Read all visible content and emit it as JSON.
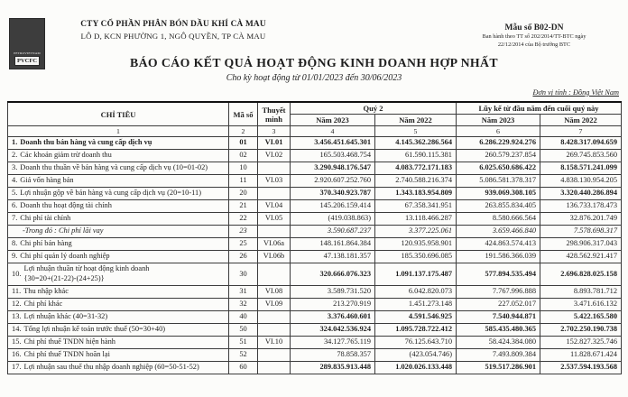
{
  "header": {
    "company_name": "CTY CỔ PHẦN PHÂN BÓN DẦU KHÍ CÀ MAU",
    "company_address": "LÔ D, KCN PHƯỜNG 1, NGÔ QUYỀN, TP CÀ MAU",
    "form_number": "Mẫu số B02-DN",
    "form_note_line1": "Ban hành theo TT số 202/2014/TT-BTC ngày",
    "form_note_line2": "22/12/2014 của Bộ trưởng BTC",
    "logo_brand_top": "PETROVIETNAM",
    "logo_brand_bottom": "PVCFC"
  },
  "title_block": {
    "title": "BÁO CÁO KẾT QUẢ HOẠT ĐỘNG KINH DOANH HỢP NHẤT",
    "subtitle": "Cho kỳ hoạt động từ 01/01/2023 đến 30/06/2023",
    "unit_note": "Đơn vị tính : Đồng Việt Nam"
  },
  "table": {
    "header": {
      "chi_tieu": "CHỈ TIÊU",
      "ma_so": "Mã số",
      "thuyet_minh": "Thuyết minh",
      "quy2": "Quý 2",
      "luy_ke": "Lũy kế từ đầu năm đến cuối quý này",
      "q2_y2023": "Năm 2023",
      "q2_y2022": "Năm 2022",
      "lk_y2023": "Năm 2023",
      "lk_y2022": "Năm 2022"
    },
    "col_index": [
      "1",
      "2",
      "3",
      "4",
      "5",
      "6",
      "7"
    ],
    "rows": [
      {
        "num": "1.",
        "label": "Doanh thu bán hàng và cung cấp dịch vụ",
        "ma_so": "01",
        "thuyet_minh": "VI.01",
        "q2_2023": "3.456.451.645.301",
        "q2_2022": "4.145.362.286.564",
        "lk_2023": "6.286.229.924.276",
        "lk_2022": "8.428.317.094.659",
        "bold": true,
        "bold_label": true,
        "italic": false
      },
      {
        "num": "2.",
        "label": "Các khoản giảm trừ doanh thu",
        "ma_so": "02",
        "thuyet_minh": "VI.02",
        "q2_2023": "165.503.468.754",
        "q2_2022": "61.590.115.381",
        "lk_2023": "260.579.237.854",
        "lk_2022": "269.745.853.560",
        "bold": false,
        "bold_label": false,
        "italic": false
      },
      {
        "num": "3.",
        "label": "Doanh thu thuần về bán hàng và cung cấp dịch vụ (10=01-02)",
        "ma_so": "10",
        "thuyet_minh": "",
        "q2_2023": "3.290.948.176.547",
        "q2_2022": "4.083.772.171.183",
        "lk_2023": "6.025.650.686.422",
        "lk_2022": "8.158.571.241.099",
        "bold": true,
        "bold_label": false,
        "italic": false
      },
      {
        "num": "4.",
        "label": "Giá vốn hàng bán",
        "ma_so": "11",
        "thuyet_minh": "VI.03",
        "q2_2023": "2.920.607.252.760",
        "q2_2022": "2.740.588.216.374",
        "lk_2023": "5.086.581.378.317",
        "lk_2022": "4.838.130.954.205",
        "bold": false,
        "bold_label": false,
        "italic": false
      },
      {
        "num": "5.",
        "label": "Lợi nhuận gộp về bán hàng và cung cấp dịch vụ (20=10-11)",
        "ma_so": "20",
        "thuyet_minh": "",
        "q2_2023": "370.340.923.787",
        "q2_2022": "1.343.183.954.809",
        "lk_2023": "939.069.308.105",
        "lk_2022": "3.320.440.286.894",
        "bold": true,
        "bold_label": false,
        "italic": false
      },
      {
        "num": "6.",
        "label": "Doanh thu hoạt động tài chính",
        "ma_so": "21",
        "thuyet_minh": "VI.04",
        "q2_2023": "145.206.159.414",
        "q2_2022": "67.358.341.951",
        "lk_2023": "263.855.834.405",
        "lk_2022": "136.733.178.473",
        "bold": false,
        "bold_label": false,
        "italic": false
      },
      {
        "num": "7.",
        "label": "Chi phí tài chính",
        "ma_so": "22",
        "thuyet_minh": "VI.05",
        "q2_2023": "(419.038.863)",
        "q2_2022": "13.118.466.287",
        "lk_2023": "8.580.666.564",
        "lk_2022": "32.876.201.749",
        "bold": false,
        "bold_label": false,
        "italic": false
      },
      {
        "num": "",
        "label": "-Trong đó : Chi phí lãi vay",
        "ma_so": "23",
        "thuyet_minh": "",
        "q2_2023": "3.590.687.237",
        "q2_2022": "3.377.225.061",
        "lk_2023": "3.659.466.840",
        "lk_2022": "7.578.698.317",
        "bold": false,
        "bold_label": false,
        "italic": true
      },
      {
        "num": "8.",
        "label": "Chi phí bán hàng",
        "ma_so": "25",
        "thuyet_minh": "VI.06a",
        "q2_2023": "148.161.864.384",
        "q2_2022": "120.935.958.901",
        "lk_2023": "424.863.574.413",
        "lk_2022": "298.906.317.043",
        "bold": false,
        "bold_label": false,
        "italic": false
      },
      {
        "num": "9.",
        "label": "Chi phí quản lý doanh nghiệp",
        "ma_so": "26",
        "thuyet_minh": "VI.06b",
        "q2_2023": "47.138.181.357",
        "q2_2022": "185.350.696.085",
        "lk_2023": "191.586.366.039",
        "lk_2022": "428.562.921.417",
        "bold": false,
        "bold_label": false,
        "italic": false
      },
      {
        "num": "10.",
        "label": "Lợi nhuận thuần từ hoạt động kinh doanh\n{30=20+(21-22)-(24+25)}",
        "ma_so": "30",
        "thuyet_minh": "",
        "q2_2023": "320.666.076.323",
        "q2_2022": "1.091.137.175.487",
        "lk_2023": "577.894.535.494",
        "lk_2022": "2.696.828.025.158",
        "bold": true,
        "bold_label": false,
        "italic": false
      },
      {
        "num": "11.",
        "label": "Thu nhập khác",
        "ma_so": "31",
        "thuyet_minh": "VI.08",
        "q2_2023": "3.589.731.520",
        "q2_2022": "6.042.820.073",
        "lk_2023": "7.767.996.888",
        "lk_2022": "8.893.781.712",
        "bold": false,
        "bold_label": false,
        "italic": false
      },
      {
        "num": "12.",
        "label": "Chi phí khác",
        "ma_so": "32",
        "thuyet_minh": "VI.09",
        "q2_2023": "213.270.919",
        "q2_2022": "1.451.273.148",
        "lk_2023": "227.052.017",
        "lk_2022": "3.471.616.132",
        "bold": false,
        "bold_label": false,
        "italic": false
      },
      {
        "num": "13.",
        "label": "Lợi nhuận khác (40=31-32)",
        "ma_so": "40",
        "thuyet_minh": "",
        "q2_2023": "3.376.460.601",
        "q2_2022": "4.591.546.925",
        "lk_2023": "7.540.944.871",
        "lk_2022": "5.422.165.580",
        "bold": true,
        "bold_label": false,
        "italic": false
      },
      {
        "num": "14.",
        "label": "Tổng lợi nhuận kế toán trước thuế (50=30+40)",
        "ma_so": "50",
        "thuyet_minh": "",
        "q2_2023": "324.042.536.924",
        "q2_2022": "1.095.728.722.412",
        "lk_2023": "585.435.480.365",
        "lk_2022": "2.702.250.190.738",
        "bold": true,
        "bold_label": false,
        "italic": false
      },
      {
        "num": "15.",
        "label": "Chi phí thuế TNDN hiện hành",
        "ma_so": "51",
        "thuyet_minh": "VI.10",
        "q2_2023": "34.127.765.119",
        "q2_2022": "76.125.643.710",
        "lk_2023": "58.424.384.080",
        "lk_2022": "152.827.325.746",
        "bold": false,
        "bold_label": false,
        "italic": false
      },
      {
        "num": "16.",
        "label": "Chi phí thuế TNDN hoãn lại",
        "ma_so": "52",
        "thuyet_minh": "",
        "q2_2023": "78.858.357",
        "q2_2022": "(423.054.746)",
        "lk_2023": "7.493.809.384",
        "lk_2022": "11.828.671.424",
        "bold": false,
        "bold_label": false,
        "italic": false
      },
      {
        "num": "17.",
        "label": "Lợi nhuận sau thuế thu nhập doanh nghiệp (60=50-51-52)",
        "ma_so": "60",
        "thuyet_minh": "",
        "q2_2023": "289.835.913.448",
        "q2_2022": "1.020.026.133.448",
        "lk_2023": "519.517.286.901",
        "lk_2022": "2.537.594.193.568",
        "bold": true,
        "bold_label": false,
        "italic": false
      }
    ]
  }
}
